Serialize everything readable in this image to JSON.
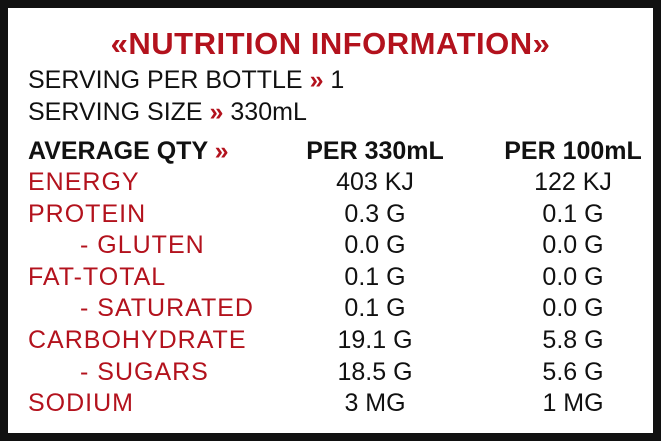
{
  "title": "«NUTRITION INFORMATION»",
  "serving": [
    {
      "label": "SERVING PER BOTTLE",
      "sep": "»",
      "value": "1"
    },
    {
      "label": "SERVING SIZE",
      "sep": "»",
      "value": "330mL"
    }
  ],
  "table": {
    "header": [
      {
        "label": "AVERAGE QTY",
        "sep": "»"
      },
      "PER 330mL",
      "PER 100mL"
    ],
    "rows": [
      [
        "ENERGY",
        "403 KJ",
        "122 KJ"
      ],
      [
        "PROTEIN",
        "0.3 G",
        "0.1 G"
      ],
      [
        "- GLUTEN",
        "0.0 G",
        "0.0 G"
      ],
      [
        "FAT-TOTAL",
        "0.1 G",
        "0.0 G"
      ],
      [
        "- SATURATED",
        "0.1 G",
        "0.0 G"
      ],
      [
        "CARBOHYDRATE",
        "19.1 G",
        "5.8 G"
      ],
      [
        "- SUGARS",
        "18.5 G",
        "5.6 G"
      ],
      [
        "SODIUM",
        "3 MG",
        "1 MG"
      ]
    ]
  }
}
